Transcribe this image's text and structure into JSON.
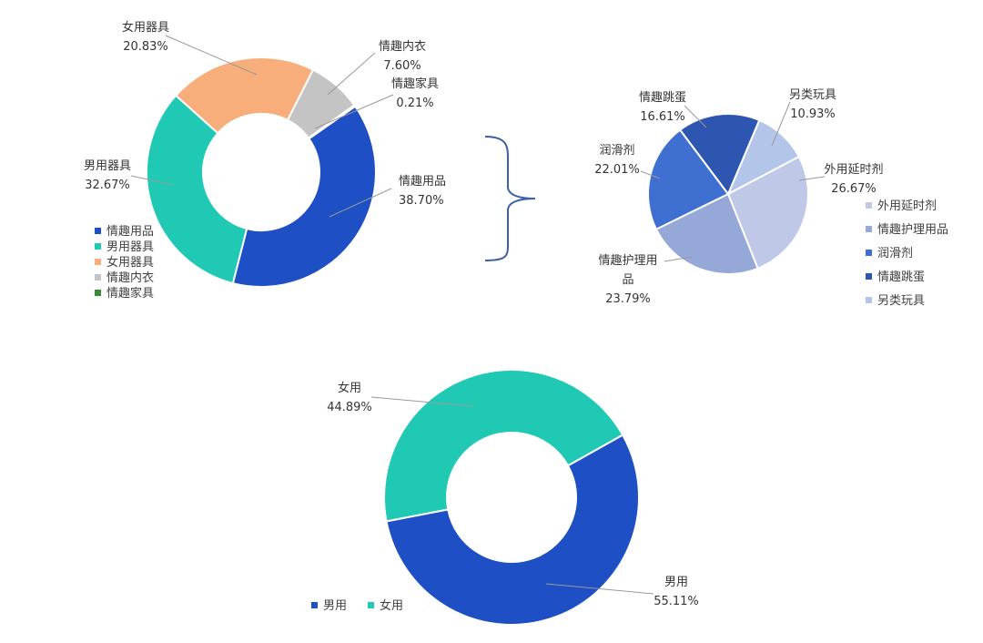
{
  "chart_data": [
    {
      "type": "pie",
      "variant": "donut",
      "categories": [
        "情趣用品",
        "男用器具",
        "女用器具",
        "情趣内衣",
        "情趣家具"
      ],
      "values": [
        38.7,
        32.67,
        20.83,
        7.6,
        0.21
      ],
      "value_labels": [
        "38.70%",
        "32.67%",
        "20.83%",
        "7.60%",
        "0.21%"
      ],
      "colors": [
        "#1f4fc4",
        "#20c9b3",
        "#f7ae7a",
        "#c4c4c4",
        "#3a8a3a"
      ],
      "legend": [
        "情趣用品",
        "男用器具",
        "女用器具",
        "情趣内衣",
        "情趣家具"
      ],
      "legend_position": "bottom-left"
    },
    {
      "type": "pie",
      "categories": [
        "另类玩具",
        "外用延时剂",
        "情趣护理用品",
        "润滑剂",
        "情趣跳蛋"
      ],
      "label_text": [
        "另类玩具",
        "外用延时剂",
        "情趣护理用\n品",
        "润滑剂",
        "情趣跳蛋"
      ],
      "values": [
        10.93,
        26.67,
        23.79,
        22.01,
        16.61
      ],
      "value_labels": [
        "10.93%",
        "26.67%",
        "23.79%",
        "22.01%",
        "16.61%"
      ],
      "colors": [
        "#b3c5e8",
        "#bfc8e6",
        "#96a8d8",
        "#3f6fd0",
        "#2e55b0"
      ],
      "legend": [
        "外用延时剂",
        "情趣护理用品",
        "润滑剂",
        "情趣跳蛋",
        "另类玩具"
      ],
      "legend_colors": [
        "#bfc8e6",
        "#96a8d8",
        "#3f6fd0",
        "#2e55b0",
        "#b3c5e8"
      ],
      "legend_position": "right"
    },
    {
      "type": "pie",
      "variant": "donut",
      "categories": [
        "男用",
        "女用"
      ],
      "values": [
        55.11,
        44.89
      ],
      "value_labels": [
        "55.11%",
        "44.89%"
      ],
      "colors": [
        "#1f4fc4",
        "#20c9b3"
      ],
      "legend": [
        "男用",
        "女用"
      ],
      "legend_position": "bottom-left"
    }
  ]
}
